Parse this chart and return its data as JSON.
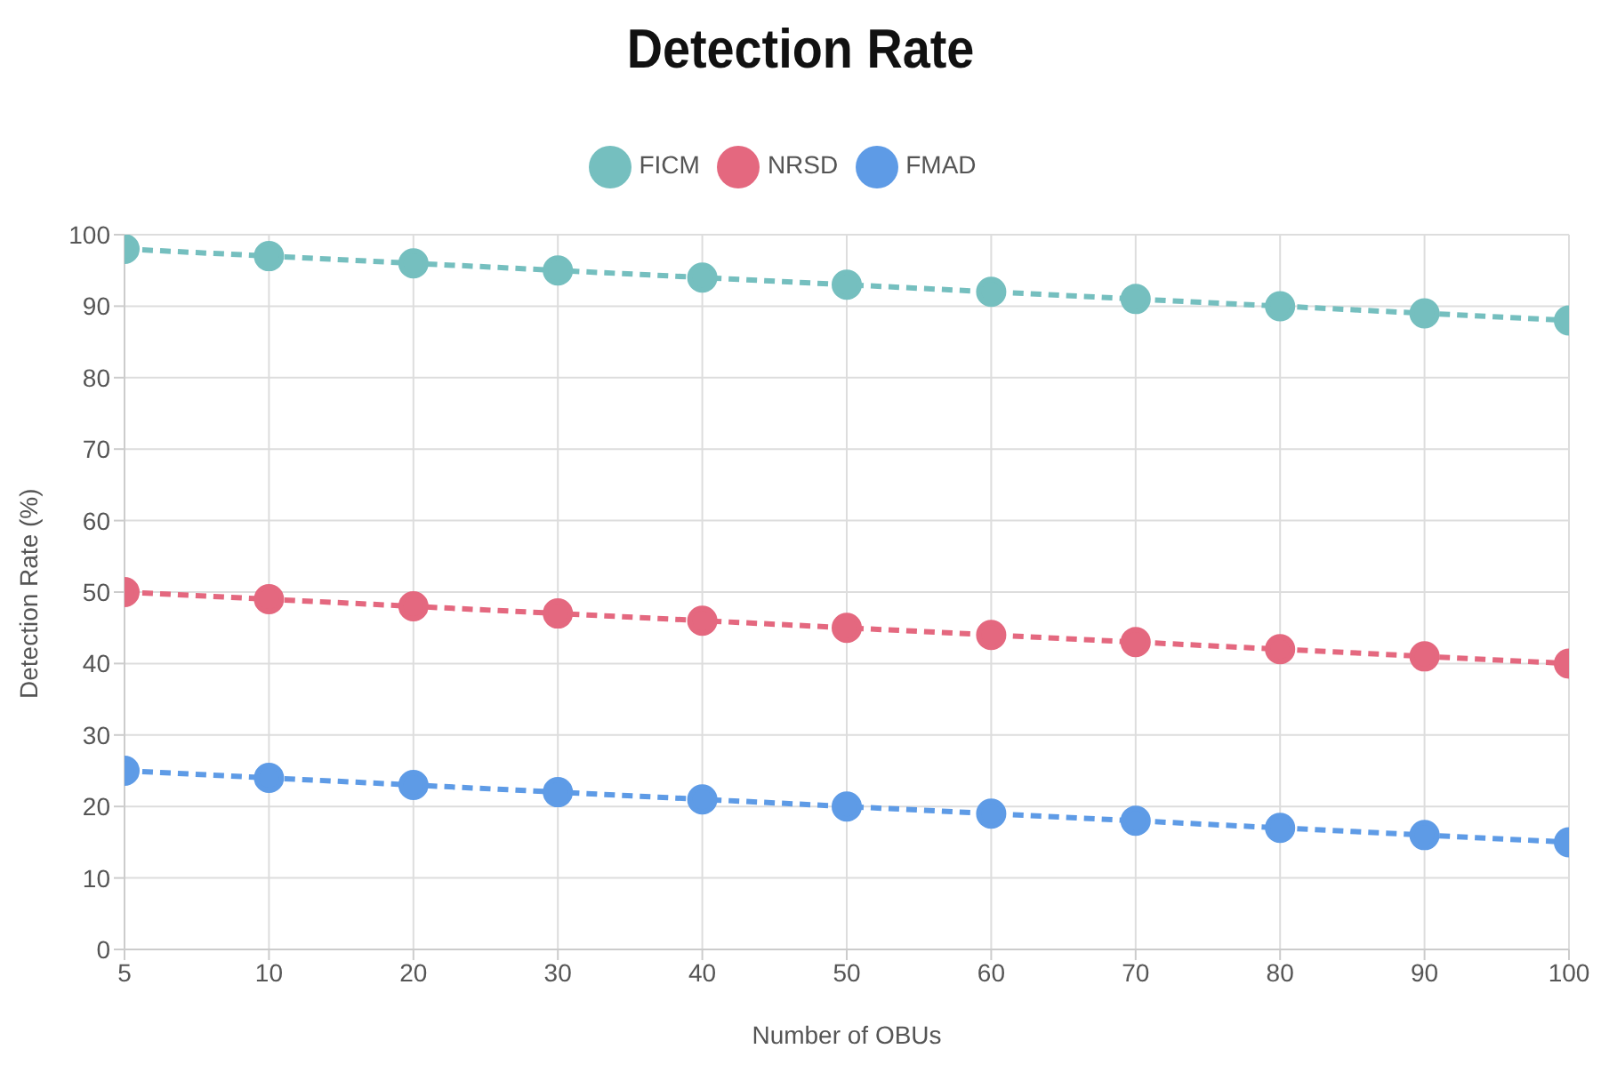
{
  "chart_data": {
    "type": "line",
    "title": "Detection Rate",
    "xlabel": "Number of OBUs",
    "ylabel": "Detection Rate (%)",
    "categories": [
      "5",
      "10",
      "20",
      "30",
      "40",
      "50",
      "60",
      "70",
      "80",
      "90",
      "100"
    ],
    "series": [
      {
        "name": "FICM",
        "color": "#75bfbf",
        "values": [
          98,
          97,
          96,
          95,
          94,
          93,
          92,
          91,
          90,
          89,
          88
        ]
      },
      {
        "name": "NRSD",
        "color": "#e4687f",
        "values": [
          50,
          49,
          48,
          47,
          46,
          45,
          44,
          43,
          42,
          41,
          40
        ]
      },
      {
        "name": "FMAD",
        "color": "#5e9be6",
        "values": [
          25,
          24,
          23,
          22,
          21,
          20,
          19,
          18,
          17,
          16,
          15
        ]
      }
    ],
    "ylim": [
      0,
      100
    ],
    "yticks": [
      0,
      10,
      20,
      30,
      40,
      50,
      60,
      70,
      80,
      90,
      100
    ],
    "grid": true,
    "legend": "top",
    "marker": "circle",
    "line_style": "dashed"
  }
}
